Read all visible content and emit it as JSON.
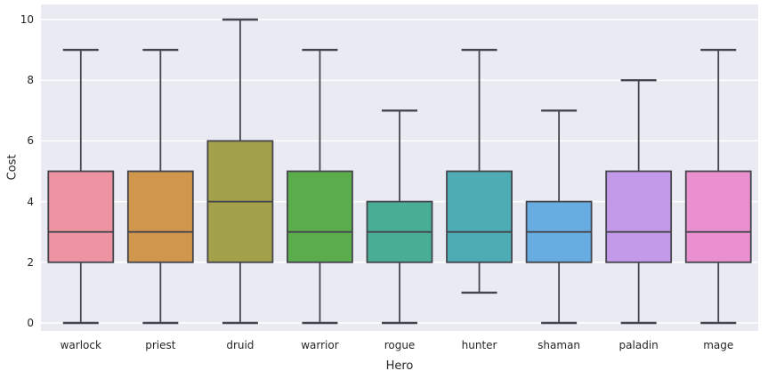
{
  "chart_data": {
    "type": "boxplot",
    "title": "",
    "xlabel": "Hero",
    "ylabel": "Cost",
    "categories": [
      "warlock",
      "priest",
      "druid",
      "warrior",
      "rogue",
      "hunter",
      "shaman",
      "paladin",
      "mage"
    ],
    "yticks": [
      0,
      2,
      4,
      6,
      8,
      10
    ],
    "ylim": [
      0,
      10
    ],
    "grid": true,
    "legend": "none",
    "plot_background": "#eaeaf2",
    "gridline_color": "#ffffff",
    "box_edge_color": "#45454d",
    "series": [
      {
        "hero": "warlock",
        "whisker_low": 0,
        "q1": 2,
        "median": 3,
        "q3": 5,
        "whisker_high": 9,
        "color": "#ed93a1"
      },
      {
        "hero": "priest",
        "whisker_low": 0,
        "q1": 2,
        "median": 3,
        "q3": 5,
        "whisker_high": 9,
        "color": "#d0964b"
      },
      {
        "hero": "druid",
        "whisker_low": 0,
        "q1": 2,
        "median": 4,
        "q3": 6,
        "whisker_high": 10,
        "color": "#a4a14b"
      },
      {
        "hero": "warrior",
        "whisker_low": 0,
        "q1": 2,
        "median": 3,
        "q3": 5,
        "whisker_high": 9,
        "color": "#5bad4c"
      },
      {
        "hero": "rogue",
        "whisker_low": 0,
        "q1": 2,
        "median": 3,
        "q3": 4,
        "whisker_high": 7,
        "color": "#49ae94"
      },
      {
        "hero": "hunter",
        "whisker_low": 1,
        "q1": 2,
        "median": 3,
        "q3": 5,
        "whisker_high": 9,
        "color": "#4dacb4"
      },
      {
        "hero": "shaman",
        "whisker_low": 0,
        "q1": 2,
        "median": 3,
        "q3": 4,
        "whisker_high": 7,
        "color": "#68ade2"
      },
      {
        "hero": "paladin",
        "whisker_low": 0,
        "q1": 2,
        "median": 3,
        "q3": 5,
        "whisker_high": 8,
        "color": "#c39ae9"
      },
      {
        "hero": "mage",
        "whisker_low": 0,
        "q1": 2,
        "median": 3,
        "q3": 5,
        "whisker_high": 9,
        "color": "#eb90cf"
      }
    ]
  }
}
